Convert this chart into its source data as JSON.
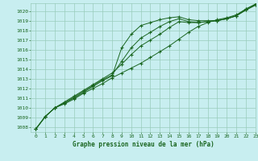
{
  "title": "Graphe pression niveau de la mer (hPa)",
  "background_color": "#c8eef0",
  "grid_color": "#99ccbb",
  "line_color": "#1a6620",
  "xlim": [
    -0.5,
    23
  ],
  "ylim": [
    1007.5,
    1020.8
  ],
  "yticks": [
    1008,
    1009,
    1010,
    1011,
    1012,
    1013,
    1014,
    1015,
    1016,
    1017,
    1018,
    1019,
    1020
  ],
  "xticks": [
    0,
    1,
    2,
    3,
    4,
    5,
    6,
    7,
    8,
    9,
    10,
    11,
    12,
    13,
    14,
    15,
    16,
    17,
    18,
    19,
    20,
    21,
    22,
    23
  ],
  "line1": [
    1007.8,
    1009.1,
    1010.0,
    1010.4,
    1010.9,
    1011.5,
    1012.0,
    1012.5,
    1013.1,
    1013.6,
    1014.1,
    1014.6,
    1015.2,
    1015.8,
    1016.4,
    1017.1,
    1017.8,
    1018.4,
    1018.8,
    1019.1,
    1019.3,
    1019.6,
    1020.2,
    1020.7
  ],
  "line2": [
    1007.8,
    1009.1,
    1010.0,
    1010.6,
    1011.2,
    1011.8,
    1012.4,
    1013.0,
    1013.6,
    1014.5,
    1015.5,
    1016.4,
    1017.0,
    1017.6,
    1018.3,
    1018.9,
    1018.8,
    1018.8,
    1018.9,
    1019.0,
    1019.2,
    1019.5,
    1020.1,
    1020.6
  ],
  "line3": [
    1007.8,
    1009.1,
    1010.0,
    1010.5,
    1011.1,
    1011.7,
    1012.3,
    1012.9,
    1013.4,
    1014.8,
    1016.2,
    1017.2,
    1017.8,
    1018.4,
    1018.9,
    1019.2,
    1018.9,
    1018.8,
    1018.9,
    1019.0,
    1019.2,
    1019.5,
    1020.1,
    1020.6
  ],
  "line4": [
    1007.8,
    1009.1,
    1010.0,
    1010.5,
    1011.0,
    1011.6,
    1012.2,
    1012.8,
    1013.3,
    1016.2,
    1017.6,
    1018.5,
    1018.8,
    1019.1,
    1019.3,
    1019.4,
    1019.1,
    1019.0,
    1019.0,
    1019.0,
    1019.2,
    1019.5,
    1020.2,
    1020.7
  ]
}
